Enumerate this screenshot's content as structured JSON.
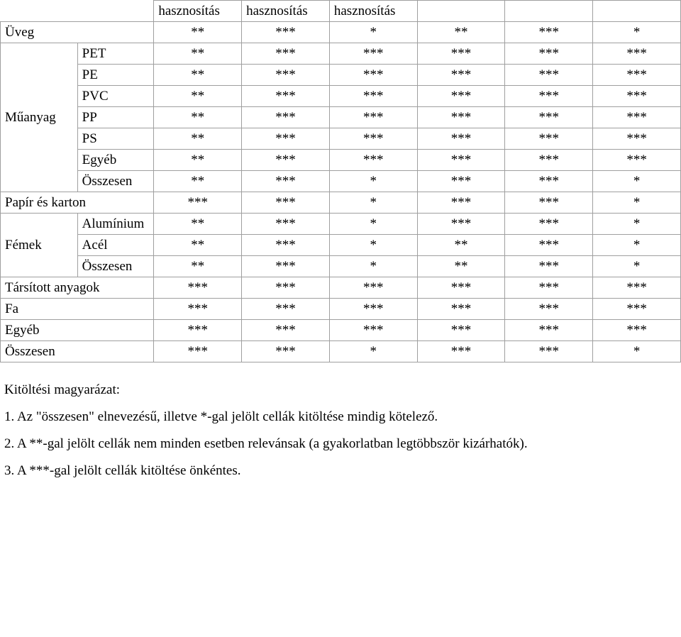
{
  "table": {
    "header_row": [
      "hasznosítás",
      "hasznosítás",
      "hasznosítás",
      "",
      "",
      ""
    ],
    "col_widths": [
      "108px",
      "107px",
      "123px",
      "123px",
      "123px",
      "123px",
      "123px",
      "123px"
    ],
    "rows": [
      {
        "cat": "Üveg",
        "span": 2,
        "c": [
          "**",
          "***",
          "*",
          "**",
          "***",
          "*"
        ]
      },
      {
        "group": "Műanyag",
        "rowspan": 7,
        "sub": "PET",
        "c": [
          "**",
          "***",
          "***",
          "***",
          "***",
          "***"
        ]
      },
      {
        "sub": "PE",
        "c": [
          "**",
          "***",
          "***",
          "***",
          "***",
          "***"
        ]
      },
      {
        "sub": "PVC",
        "c": [
          "**",
          "***",
          "***",
          "***",
          "***",
          "***"
        ]
      },
      {
        "sub": "PP",
        "c": [
          "**",
          "***",
          "***",
          "***",
          "***",
          "***"
        ]
      },
      {
        "sub": "PS",
        "c": [
          "**",
          "***",
          "***",
          "***",
          "***",
          "***"
        ]
      },
      {
        "sub": "Egyéb",
        "c": [
          "**",
          "***",
          "***",
          "***",
          "***",
          "***"
        ]
      },
      {
        "sub": "Összesen",
        "c": [
          "**",
          "***",
          "*",
          "***",
          "***",
          "*"
        ]
      },
      {
        "cat": "Papír és karton",
        "span": 2,
        "c": [
          "***",
          "***",
          "*",
          "***",
          "***",
          "*"
        ]
      },
      {
        "group": "Fémek",
        "rowspan": 3,
        "sub": "Alumínium",
        "c": [
          "**",
          "***",
          "*",
          "***",
          "***",
          "*"
        ]
      },
      {
        "sub": "Acél",
        "c": [
          "**",
          "***",
          "*",
          "**",
          "***",
          "*"
        ]
      },
      {
        "sub": "Összesen",
        "c": [
          "**",
          "***",
          "*",
          "**",
          "***",
          "*"
        ]
      },
      {
        "cat": "Társított anyagok",
        "span": 2,
        "c": [
          "***",
          "***",
          "***",
          "***",
          "***",
          "***"
        ]
      },
      {
        "cat": "Fa",
        "span": 2,
        "c": [
          "***",
          "***",
          "***",
          "***",
          "***",
          "***"
        ]
      },
      {
        "cat": "Egyéb",
        "span": 2,
        "c": [
          "***",
          "***",
          "***",
          "***",
          "***",
          "***"
        ]
      },
      {
        "cat": "Összesen",
        "span": 2,
        "c": [
          "***",
          "***",
          "*",
          "***",
          "***",
          "*"
        ]
      }
    ]
  },
  "explanation": {
    "title": "Kitöltési magyarázat:",
    "item1": "1. Az \"összesen\" elnevezésű, illetve *-gal jelölt cellák kitöltése mindig kötelező.",
    "item2": "2. A **-gal jelölt cellák nem minden esetben relevánsak (a gyakorlatban legtöbbször kizárhatók).",
    "item3": "3. A ***-gal jelölt cellák kitöltése önkéntes."
  }
}
